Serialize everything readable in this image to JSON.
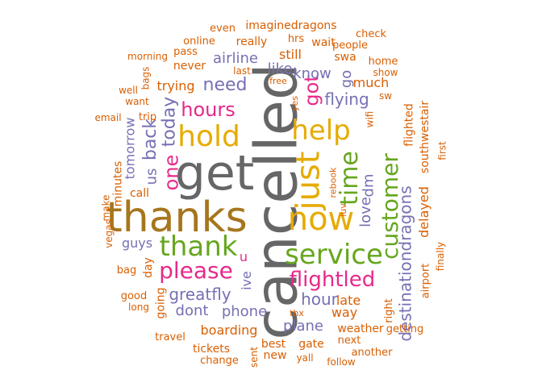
{
  "palette": {
    "orange": "#D95F02",
    "purple": "#7570B3",
    "magenta": "#E7298A",
    "green": "#66A61E",
    "gold": "#E6AB02",
    "brown": "#A6761D",
    "gray": "#666666"
  },
  "words": [
    {
      "text": "cancelled",
      "color": "gray",
      "size": 72,
      "vertical": true
    },
    {
      "text": "get",
      "color": "gray",
      "size": 60,
      "vertical": false
    },
    {
      "text": "thanks",
      "color": "brown",
      "size": 52,
      "vertical": false
    },
    {
      "text": "now",
      "color": "gold",
      "size": 40,
      "vertical": false
    },
    {
      "text": "just",
      "color": "gold",
      "size": 40,
      "vertical": true
    },
    {
      "text": "hold",
      "color": "gold",
      "size": 36,
      "vertical": false
    },
    {
      "text": "help",
      "color": "gold",
      "size": 34,
      "vertical": false
    },
    {
      "text": "service",
      "color": "green",
      "size": 34,
      "vertical": false
    },
    {
      "text": "thank",
      "color": "green",
      "size": 34,
      "vertical": false
    },
    {
      "text": "time",
      "color": "green",
      "size": 30,
      "vertical": true
    },
    {
      "text": "customer",
      "color": "green",
      "size": 28,
      "vertical": true
    },
    {
      "text": "please",
      "color": "magenta",
      "size": 28,
      "vertical": false
    },
    {
      "text": "flightled",
      "color": "magenta",
      "size": 26,
      "vertical": false
    },
    {
      "text": "hours",
      "color": "magenta",
      "size": 24,
      "vertical": false
    },
    {
      "text": "got",
      "color": "magenta",
      "size": 24,
      "vertical": true
    },
    {
      "text": "one",
      "color": "magenta",
      "size": 24,
      "vertical": true
    },
    {
      "text": "destinationdragons",
      "color": "purple",
      "size": 20,
      "vertical": true
    },
    {
      "text": "need",
      "color": "purple",
      "size": 22,
      "vertical": false
    },
    {
      "text": "back",
      "color": "purple",
      "size": 22,
      "vertical": true
    },
    {
      "text": "today",
      "color": "purple",
      "size": 22,
      "vertical": true
    },
    {
      "text": "flying",
      "color": "purple",
      "size": 20,
      "vertical": false
    },
    {
      "text": "hour",
      "color": "purple",
      "size": 20,
      "vertical": false
    },
    {
      "text": "greatfly",
      "color": "purple",
      "size": 20,
      "vertical": false
    },
    {
      "text": "love",
      "color": "purple",
      "size": 18,
      "vertical": true
    },
    {
      "text": "dm",
      "color": "purple",
      "size": 18,
      "vertical": true
    },
    {
      "text": "know",
      "color": "purple",
      "size": 18,
      "vertical": false
    },
    {
      "text": "phone",
      "color": "purple",
      "size": 18,
      "vertical": false
    },
    {
      "text": "plane",
      "color": "purple",
      "size": 18,
      "vertical": false
    },
    {
      "text": "dont",
      "color": "purple",
      "size": 18,
      "vertical": false
    },
    {
      "text": "airline",
      "color": "purple",
      "size": 18,
      "vertical": false
    },
    {
      "text": "like",
      "color": "purple",
      "size": 18,
      "vertical": false
    },
    {
      "text": "guys",
      "color": "purple",
      "size": 16,
      "vertical": false
    },
    {
      "text": "us",
      "color": "purple",
      "size": 18,
      "vertical": true
    },
    {
      "text": "ive",
      "color": "purple",
      "size": 16,
      "vertical": true
    },
    {
      "text": "u",
      "color": "magenta",
      "size": 16,
      "vertical": false
    },
    {
      "text": "go",
      "color": "purple",
      "size": 18,
      "vertical": true
    },
    {
      "text": "tomorrow",
      "color": "purple",
      "size": 16,
      "vertical": true
    },
    {
      "text": "delayed",
      "color": "orange",
      "size": 16,
      "vertical": true
    },
    {
      "text": "southwestair",
      "color": "orange",
      "size": 14,
      "vertical": true
    },
    {
      "text": "flighted",
      "color": "orange",
      "size": 14,
      "vertical": true
    },
    {
      "text": "trying",
      "color": "orange",
      "size": 16,
      "vertical": false
    },
    {
      "text": "much",
      "color": "orange",
      "size": 16,
      "vertical": false
    },
    {
      "text": "still",
      "color": "orange",
      "size": 16,
      "vertical": false
    },
    {
      "text": "late",
      "color": "orange",
      "size": 16,
      "vertical": false
    },
    {
      "text": "way",
      "color": "orange",
      "size": 16,
      "vertical": false
    },
    {
      "text": "boarding",
      "color": "orange",
      "size": 16,
      "vertical": false
    },
    {
      "text": "swa",
      "color": "orange",
      "size": 14,
      "vertical": false
    },
    {
      "text": "really",
      "color": "orange",
      "size": 14,
      "vertical": false
    },
    {
      "text": "minutes",
      "color": "orange",
      "size": 14,
      "vertical": true
    },
    {
      "text": "call",
      "color": "orange",
      "size": 14,
      "vertical": false
    },
    {
      "text": "day",
      "color": "orange",
      "size": 14,
      "vertical": true
    },
    {
      "text": "going",
      "color": "orange",
      "size": 14,
      "vertical": true
    },
    {
      "text": "tickets",
      "color": "orange",
      "size": 14,
      "vertical": false
    },
    {
      "text": "best",
      "color": "orange",
      "size": 14,
      "vertical": false
    },
    {
      "text": "gate",
      "color": "orange",
      "size": 14,
      "vertical": false
    },
    {
      "text": "weather",
      "color": "orange",
      "size": 14,
      "vertical": false
    },
    {
      "text": "getting",
      "color": "orange",
      "size": 13,
      "vertical": false
    },
    {
      "text": "never",
      "color": "orange",
      "size": 14,
      "vertical": false
    },
    {
      "text": "right",
      "color": "orange",
      "size": 13,
      "vertical": true
    },
    {
      "text": "airport",
      "color": "orange",
      "size": 13,
      "vertical": true
    },
    {
      "text": "trip",
      "color": "orange",
      "size": 13,
      "vertical": false
    },
    {
      "text": "imaginedragons",
      "color": "orange",
      "size": 14,
      "vertical": false
    },
    {
      "text": "even",
      "color": "orange",
      "size": 13,
      "vertical": false
    },
    {
      "text": "online",
      "color": "orange",
      "size": 13,
      "vertical": false
    },
    {
      "text": "hrs",
      "color": "orange",
      "size": 13,
      "vertical": false
    },
    {
      "text": "wait",
      "color": "orange",
      "size": 14,
      "vertical": false
    },
    {
      "text": "people",
      "color": "orange",
      "size": 13,
      "vertical": false
    },
    {
      "text": "check",
      "color": "orange",
      "size": 13,
      "vertical": false
    },
    {
      "text": "pass",
      "color": "orange",
      "size": 13,
      "vertical": false
    },
    {
      "text": "morning",
      "color": "orange",
      "size": 12,
      "vertical": false
    },
    {
      "text": "home",
      "color": "orange",
      "size": 13,
      "vertical": false
    },
    {
      "text": "show",
      "color": "orange",
      "size": 12,
      "vertical": false
    },
    {
      "text": "last",
      "color": "orange",
      "size": 12,
      "vertical": false
    },
    {
      "text": "bags",
      "color": "orange",
      "size": 12,
      "vertical": true
    },
    {
      "text": "free",
      "color": "orange",
      "size": 11,
      "vertical": false
    },
    {
      "text": "well",
      "color": "orange",
      "size": 12,
      "vertical": false
    },
    {
      "text": "want",
      "color": "orange",
      "size": 12,
      "vertical": false
    },
    {
      "text": "sw",
      "color": "orange",
      "size": 12,
      "vertical": false
    },
    {
      "text": "yes",
      "color": "orange",
      "size": 11,
      "vertical": true
    },
    {
      "text": "wifi",
      "color": "orange",
      "size": 12,
      "vertical": true
    },
    {
      "text": "email",
      "color": "orange",
      "size": 12,
      "vertical": false
    },
    {
      "text": "luv",
      "color": "orange",
      "size": 11,
      "vertical": true
    },
    {
      "text": "rebook",
      "color": "orange",
      "size": 11,
      "vertical": true
    },
    {
      "text": "first",
      "color": "orange",
      "size": 12,
      "vertical": true
    },
    {
      "text": "make",
      "color": "orange",
      "size": 12,
      "vertical": true
    },
    {
      "text": "vegas",
      "color": "orange",
      "size": 12,
      "vertical": true
    },
    {
      "text": "bag",
      "color": "orange",
      "size": 13,
      "vertical": false
    },
    {
      "text": "finally",
      "color": "orange",
      "size": 12,
      "vertical": true
    },
    {
      "text": "good",
      "color": "orange",
      "size": 13,
      "vertical": false
    },
    {
      "text": "long",
      "color": "orange",
      "size": 12,
      "vertical": false
    },
    {
      "text": "travel",
      "color": "orange",
      "size": 13,
      "vertical": false
    },
    {
      "text": "thx",
      "color": "orange",
      "size": 11,
      "vertical": false
    },
    {
      "text": "next",
      "color": "orange",
      "size": 13,
      "vertical": false
    },
    {
      "text": "another",
      "color": "orange",
      "size": 13,
      "vertical": false
    },
    {
      "text": "sent",
      "color": "orange",
      "size": 12,
      "vertical": true
    },
    {
      "text": "new",
      "color": "orange",
      "size": 14,
      "vertical": false
    },
    {
      "text": "yall",
      "color": "orange",
      "size": 12,
      "vertical": false
    },
    {
      "text": "change",
      "color": "orange",
      "size": 13,
      "vertical": false
    },
    {
      "text": "follow",
      "color": "orange",
      "size": 12,
      "vertical": false
    }
  ]
}
